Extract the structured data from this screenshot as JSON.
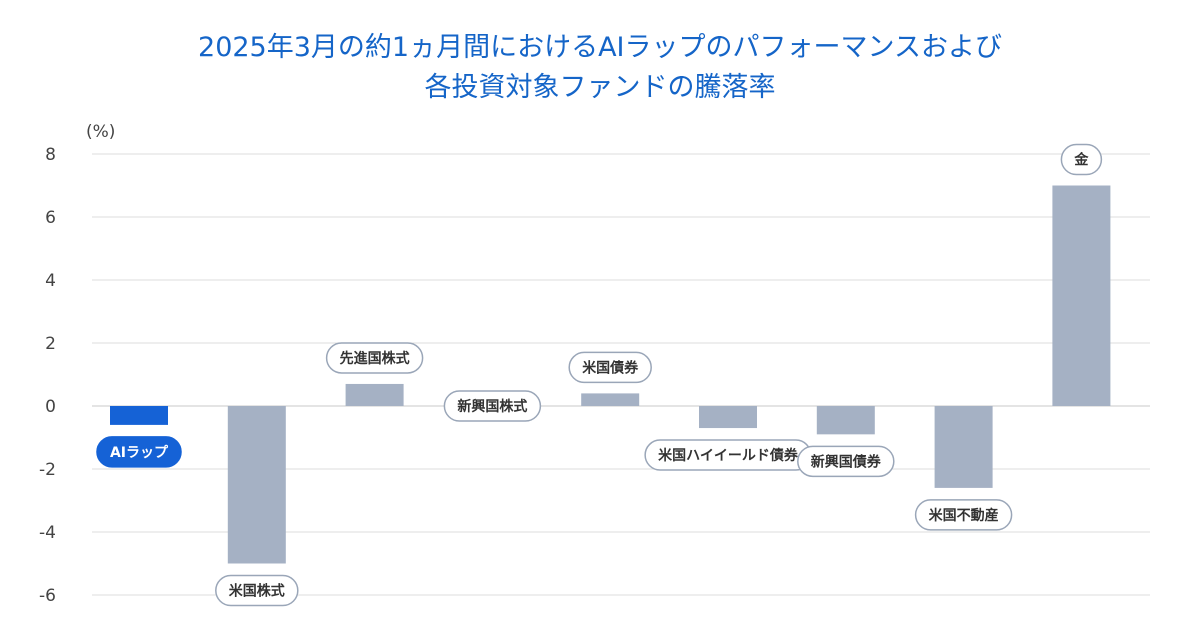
{
  "title": {
    "line1": "2025年3月の約1ヵ月間におけるAIラップのパフォーマンスおよび",
    "line2": "各投資対象ファンドの騰落率"
  },
  "chart_data": {
    "type": "bar",
    "unit_label": "(%)",
    "ylim": [
      -6,
      8
    ],
    "yticks": [
      8,
      6,
      4,
      2,
      0,
      -2,
      -4,
      -6
    ],
    "ytick_labels": [
      "8",
      "6",
      "4",
      "2",
      "0",
      "-2",
      "-4",
      "-6"
    ],
    "grid": true,
    "legend": "none",
    "categories": [
      "AIラップ",
      "米国株式",
      "先進国株式",
      "新興国株式",
      "米国債券",
      "米国ハイイールド債券",
      "新興国債券",
      "米国不動産",
      "金"
    ],
    "values": [
      -0.6,
      -5.0,
      0.7,
      0.0,
      0.4,
      -0.7,
      -0.9,
      -2.6,
      7.0
    ],
    "colors": {
      "highlight": "#1562d6",
      "bar": "#a5b1c4",
      "label_border": "#9aa6b8",
      "label_text": "#333333",
      "grid": "#dddddd",
      "baseline": "#c8c8c8"
    }
  }
}
